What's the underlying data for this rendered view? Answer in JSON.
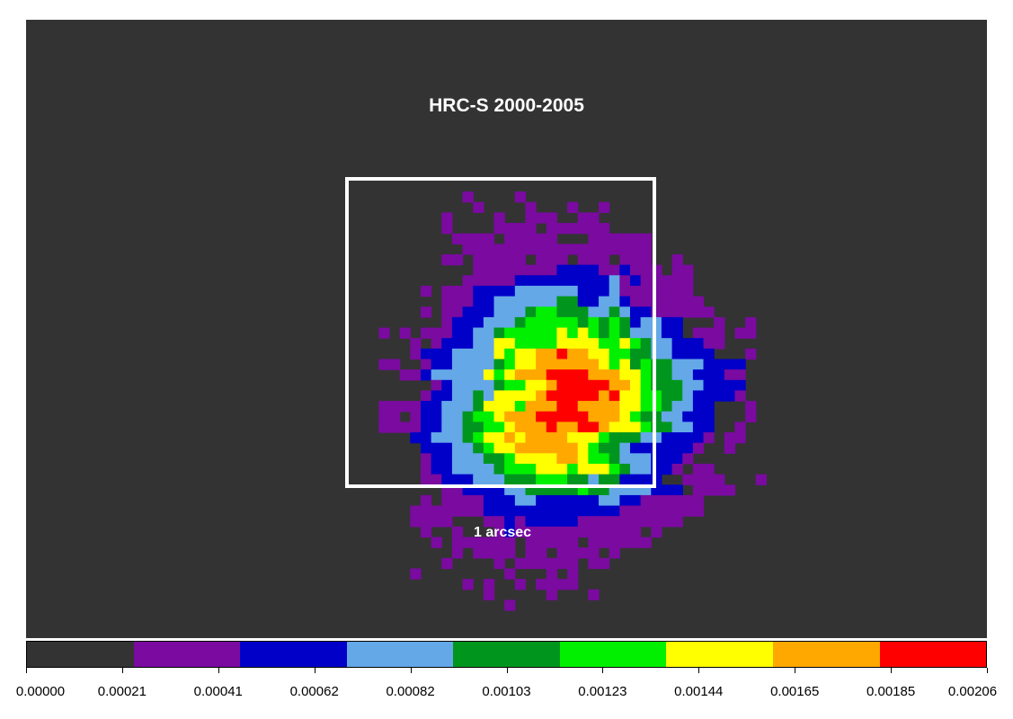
{
  "chart_data": {
    "type": "heatmap",
    "title": "HRC-S 2000-2005",
    "annotation": "1 arcsec",
    "colorbar": {
      "range": [
        0.0,
        0.00206
      ],
      "colors": [
        "#333333",
        "#7a0aa0",
        "#0000c8",
        "#64a8e8",
        "#00961e",
        "#00f000",
        "#ffff00",
        "#ffa800",
        "#ff0000"
      ],
      "tick_labels": [
        "0.00000",
        "0.00021",
        "0.00041",
        "0.00062",
        "0.00082",
        "0.00103",
        "0.00123",
        "0.00144",
        "0.00165",
        "0.00185",
        "0.00206"
      ]
    },
    "grid_size": [
      64,
      64
    ],
    "center": [
      30,
      22
    ],
    "values": [
      "................................................................",
      "................................................................",
      "................................................................",
      "................................................................",
      "................................................................",
      "................................................................",
      "................................................................",
      "................................................................",
      "..........................1....1................................",
      "...........................1....1...1..1........................",
      "........................1....1..111..11.........................",
      "........................1....1111.111111........................",
      ".........................1111.11111...111111....................",
      "..........................111111111111111111....................",
      "........................11.11111.111.111.111..1.................",
      "...........................111111112222112111.11................",
      "..........................1111122222222231211111................",
      "......................1.111222233333322231111111................",
      "........................1112233333344223321111111...............",
      "......................1.11222333455444334322111111..............",
      "........................12223334555554545423322...1..1..........",
      "..................1.1.1112233455555656545433322.111.11..........",
      ".....................1.1222336655556666556543322211.............",
      ".....................12223333656677877665544332222...1...........",
      "..................11..1223333456677777765645443332222...........",
      "....................112333336567778888777665443322211...........",
      ".......................123333455667888887765444332222............",
      "......................1223343666678888878665544322221...........",
      "..................11112233346665777887777665543322...1..........",
      "..................11.12233455677788888777654433222...1..........",
      "..................11112233445567778778876665443322..1...........",
      ".....................22333456676777766654443322221.11...........",
      "......................222334566777777654432222221..1............",
      "......................12233344566667765543332221................",
      "......................1223333455566656665433221.11..............",
      "......................11222333444555443442222..1111...1.........",
      "........................11222233444445443333222.1111............",
      "......................1.1111222332222223322111111...............",
      ".....................1111111222222222222211111111...............",
      ".....................1111...1121222221111111111.................",
      "......................1..1...12111111111111.1..................",
      ".......................1.111111.11111.111111....................",
      ".........................1.1111.11.1111.1.......................",
      "........................1....1.111111.11........................",
      ".....................1........1...1.1...........................",
      "..........................1.1..1.1111...........................",
      "............................1.....1...1.........................",
      "..............................1.................................",
      "................................................................",
      "................................................................",
      "................................................................",
      "................................................................",
      "................................................................",
      "................................................................",
      "................................................................",
      "................................................................",
      "................................................................",
      "................................................................",
      "................................................................",
      "................................................................",
      "................................................................",
      "................................................................",
      "................................................................",
      "................................................................"
    ]
  }
}
